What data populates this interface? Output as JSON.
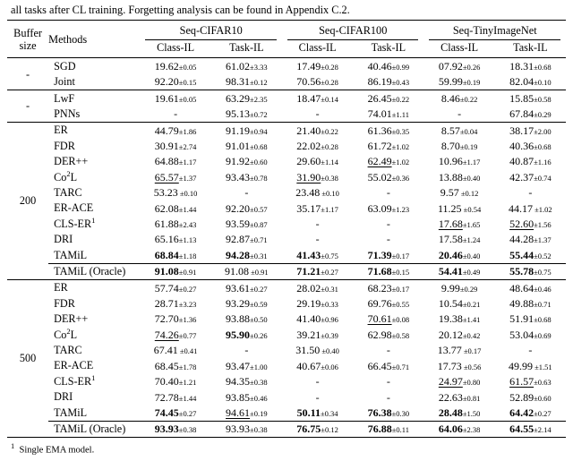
{
  "caption": "all tasks after CL training. Forgetting analysis can be found in Appendix C.2.",
  "footnote": "Single EMA model.",
  "footnote_marker": "1",
  "header": {
    "buffer": "Buffer size",
    "methods": "Methods",
    "datasets": [
      "Seq-CIFAR10",
      "Seq-CIFAR100",
      "Seq-TinyImageNet"
    ],
    "sub": [
      "Class-IL",
      "Task-IL"
    ]
  },
  "groups": [
    {
      "buffer": "-",
      "rows": [
        {
          "m": "SGD",
          "v": [
            [
              "19.62",
              "±0.05"
            ],
            [
              "61.02",
              "±3.33"
            ],
            [
              "17.49",
              "±0.28"
            ],
            [
              "40.46",
              "±0.99"
            ],
            [
              "07.92",
              "±0.26"
            ],
            [
              "18.31",
              "±0.68"
            ]
          ]
        },
        {
          "m": "Joint",
          "v": [
            [
              "92.20",
              "±0.15"
            ],
            [
              "98.31",
              "±0.12"
            ],
            [
              "70.56",
              "±0.28"
            ],
            [
              "86.19",
              "±0.43"
            ],
            [
              "59.99",
              "±0.19"
            ],
            [
              "82.04",
              "±0.10"
            ]
          ]
        }
      ]
    },
    {
      "buffer": "-",
      "rows": [
        {
          "m": "LwF",
          "v": [
            [
              "19.61",
              "±0.05"
            ],
            [
              "63.29",
              "±2.35"
            ],
            [
              "18.47",
              "±0.14"
            ],
            [
              "26.45",
              "±0.22"
            ],
            [
              "8.46",
              "±0.22"
            ],
            [
              "15.85",
              "±0.58"
            ]
          ]
        },
        {
          "m": "PNNs",
          "v": [
            [
              "-",
              ""
            ],
            [
              "95.13",
              "±0.72"
            ],
            [
              "-",
              ""
            ],
            [
              "74.01",
              "±1.11"
            ],
            [
              "-",
              ""
            ],
            [
              "67.84",
              "±0.29"
            ]
          ]
        }
      ]
    },
    {
      "buffer": "200",
      "rows": [
        {
          "m": "ER",
          "v": [
            [
              "44.79",
              "±1.86"
            ],
            [
              "91.19",
              "±0.94"
            ],
            [
              "21.40",
              "±0.22"
            ],
            [
              "61.36",
              "±0.35"
            ],
            [
              "8.57",
              "±0.04"
            ],
            [
              "38.17",
              "±2.00"
            ]
          ]
        },
        {
          "m": "FDR",
          "v": [
            [
              "30.91",
              "±2.74"
            ],
            [
              "91.01",
              "±0.68"
            ],
            [
              "22.02",
              "±0.28"
            ],
            [
              "61.72",
              "±1.02"
            ],
            [
              "8.70",
              "±0.19"
            ],
            [
              "40.36",
              "±0.68"
            ]
          ]
        },
        {
          "m": "DER++",
          "v": [
            [
              "64.88",
              "±1.17"
            ],
            [
              "91.92",
              "±0.60"
            ],
            [
              "29.60",
              "±1.14"
            ],
            [
              "62.49",
              "±1.02",
              "u"
            ],
            [
              "10.96",
              "±1.17"
            ],
            [
              "40.87",
              "±1.16"
            ]
          ]
        },
        {
          "m": "Co²L",
          "sup2": true,
          "v": [
            [
              "65.57",
              "±1.37",
              "u"
            ],
            [
              "93.43",
              "±0.78"
            ],
            [
              "31.90",
              "±0.38",
              "u"
            ],
            [
              "55.02",
              "±0.36"
            ],
            [
              "13.88",
              "±0.40"
            ],
            [
              "42.37",
              "±0.74"
            ]
          ]
        },
        {
          "m": "TARC",
          "v": [
            [
              "53.23",
              " ±0.10"
            ],
            [
              "-",
              ""
            ],
            [
              "23.48",
              " ±0.10"
            ],
            [
              "-",
              ""
            ],
            [
              "9.57",
              " ±0.12"
            ],
            [
              "-",
              ""
            ]
          ]
        },
        {
          "m": "ER-ACE",
          "v": [
            [
              "62.08",
              "±1.44"
            ],
            [
              "92.20",
              "±0.57"
            ],
            [
              "35.17",
              "±1.17"
            ],
            [
              "63.09",
              "±1.23"
            ],
            [
              "11.25",
              " ±0.54"
            ],
            [
              "44.17",
              " ±1.02"
            ]
          ]
        },
        {
          "m": "CLS-ER¹",
          "sup1": true,
          "v": [
            [
              "61.88",
              "±2.43"
            ],
            [
              "93.59",
              "±0.87"
            ],
            [
              "-",
              ""
            ],
            [
              "-",
              ""
            ],
            [
              "17.68",
              "±1.65",
              "u"
            ],
            [
              "52.60",
              "±1.56",
              "u"
            ]
          ]
        },
        {
          "m": "DRI",
          "v": [
            [
              "65.16",
              "±1.13"
            ],
            [
              "92.87",
              "±0.71"
            ],
            [
              "-",
              ""
            ],
            [
              "-",
              ""
            ],
            [
              "17.58",
              "±1.24"
            ],
            [
              "44.28",
              "±1.37"
            ]
          ]
        },
        {
          "m": "TAMiL",
          "v": [
            [
              "68.84",
              "±1.18",
              "b"
            ],
            [
              "94.28",
              "±0.31",
              "b"
            ],
            [
              "41.43",
              "±0.75",
              "b"
            ],
            [
              "71.39",
              "±0.17",
              "b"
            ],
            [
              "20.46",
              "±0.40",
              "b"
            ],
            [
              "55.44",
              "±0.52",
              "b"
            ]
          ]
        }
      ],
      "oracle": {
        "m": "TAMiL (Oracle)",
        "v": [
          [
            "91.08",
            "±0.91",
            "b"
          ],
          [
            "91.08",
            " ±0.91"
          ],
          [
            "71.21",
            "±0.27",
            "b"
          ],
          [
            "71.68",
            "±0.15",
            "b"
          ],
          [
            "54.41",
            "±0.49",
            "b"
          ],
          [
            "55.78",
            "±0.75",
            "b"
          ]
        ]
      }
    },
    {
      "buffer": "500",
      "rows": [
        {
          "m": "ER",
          "v": [
            [
              "57.74",
              "±0.27"
            ],
            [
              "93.61",
              "±0.27"
            ],
            [
              "28.02",
              "±0.31"
            ],
            [
              "68.23",
              "±0.17"
            ],
            [
              "9.99",
              "±0.29"
            ],
            [
              "48.64",
              "±0.46"
            ]
          ]
        },
        {
          "m": "FDR",
          "v": [
            [
              "28.71",
              "±3.23"
            ],
            [
              "93.29",
              "±0.59"
            ],
            [
              "29.19",
              "±0.33"
            ],
            [
              "69.76",
              "±0.55"
            ],
            [
              "10.54",
              "±0.21"
            ],
            [
              "49.88",
              "±0.71"
            ]
          ]
        },
        {
          "m": "DER++",
          "v": [
            [
              "72.70",
              "±1.36"
            ],
            [
              "93.88",
              "±0.50"
            ],
            [
              "41.40",
              "±0.96"
            ],
            [
              "70.61",
              "±0.08",
              "u"
            ],
            [
              "19.38",
              "±1.41"
            ],
            [
              "51.91",
              "±0.68"
            ]
          ]
        },
        {
          "m": "Co²L",
          "sup2": true,
          "v": [
            [
              "74.26",
              "±0.77",
              "u"
            ],
            [
              "95.90",
              "±0.26",
              "b"
            ],
            [
              "39.21",
              "±0.39"
            ],
            [
              "62.98",
              "±0.58"
            ],
            [
              "20.12",
              "±0.42"
            ],
            [
              "53.04",
              "±0.69"
            ]
          ]
        },
        {
          "m": "TARC",
          "v": [
            [
              "67.41",
              " ±0.41"
            ],
            [
              "-",
              ""
            ],
            [
              "31.50",
              " ±0.40"
            ],
            [
              "-",
              ""
            ],
            [
              "13.77",
              " ±0.17"
            ],
            [
              "-",
              ""
            ]
          ]
        },
        {
          "m": "ER-ACE",
          "v": [
            [
              "68.45",
              "±1.78"
            ],
            [
              "93.47",
              "±1.00"
            ],
            [
              "40.67",
              "±0.06"
            ],
            [
              "66.45",
              "±0.71"
            ],
            [
              "17.73",
              " ±0.56"
            ],
            [
              "49.99",
              " ±1.51"
            ]
          ]
        },
        {
          "m": "CLS-ER¹",
          "sup1": true,
          "v": [
            [
              "70.40",
              "±1.21"
            ],
            [
              "94.35",
              "±0.38"
            ],
            [
              "-",
              ""
            ],
            [
              "-",
              ""
            ],
            [
              "24.97",
              "±0.80",
              "u"
            ],
            [
              "61.57",
              "±0.63",
              "u"
            ]
          ]
        },
        {
          "m": "DRI",
          "v": [
            [
              "72.78",
              "±1.44"
            ],
            [
              "93.85",
              "±0.46"
            ],
            [
              "-",
              ""
            ],
            [
              "-",
              ""
            ],
            [
              "22.63",
              "±0.81"
            ],
            [
              "52.89",
              "±0.60"
            ]
          ]
        },
        {
          "m": "TAMiL",
          "v": [
            [
              "74.45",
              "±0.27",
              "b"
            ],
            [
              "94.61",
              "±0.19",
              "u"
            ],
            [
              "50.11",
              "±0.34",
              "b"
            ],
            [
              "76.38",
              "±0.30",
              "b"
            ],
            [
              "28.48",
              "±1.50",
              "b"
            ],
            [
              "64.42",
              "±0.27",
              "b"
            ]
          ]
        }
      ],
      "oracle": {
        "m": "TAMiL (Oracle)",
        "v": [
          [
            "93.93",
            "±0.38",
            "b"
          ],
          [
            "93.93",
            "±0.38"
          ],
          [
            "76.75",
            "±0.12",
            "b"
          ],
          [
            "76.88",
            "±0.11",
            "b"
          ],
          [
            "64.06",
            "±2.38",
            "b"
          ],
          [
            "64.55",
            "±2.14",
            "b"
          ]
        ]
      }
    }
  ]
}
